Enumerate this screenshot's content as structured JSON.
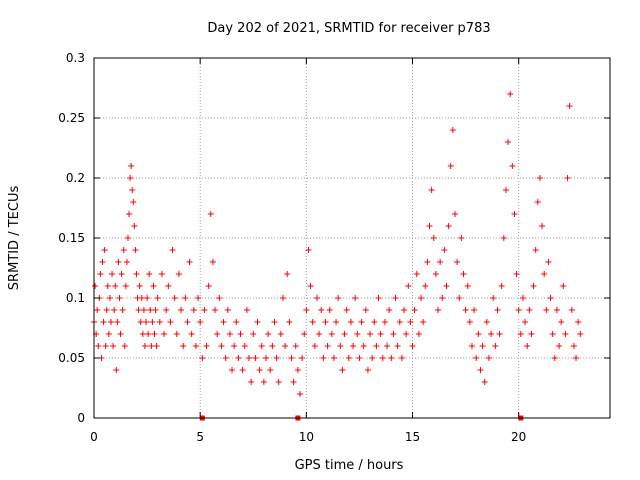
{
  "chart_data": {
    "type": "scatter",
    "title": "Day 202 of 2021, SRMTID for receiver p783",
    "xlabel": "GPS time / hours",
    "ylabel": "SRMTID / TECUs",
    "xlim": [
      0,
      24.3
    ],
    "ylim": [
      0,
      0.3
    ],
    "xticks": [
      0,
      5,
      10,
      15,
      20
    ],
    "xtick_labels": [
      "0",
      "5",
      "10",
      "15",
      "20"
    ],
    "yticks": [
      0,
      0.05,
      0.1,
      0.15,
      0.2,
      0.25,
      0.3
    ],
    "ytick_labels": [
      "0",
      "0.05",
      "0.1",
      "0.15",
      "0.2",
      "0.25",
      "0.3"
    ],
    "grid": true,
    "marker": "plus",
    "series_color": "#ff0000",
    "series": [
      {
        "name": "SRMTID",
        "points": [
          [
            0.0,
            0.08
          ],
          [
            0.05,
            0.11
          ],
          [
            0.1,
            0.07
          ],
          [
            0.15,
            0.09
          ],
          [
            0.2,
            0.06
          ],
          [
            0.25,
            0.1
          ],
          [
            0.3,
            0.12
          ],
          [
            0.35,
            0.05
          ],
          [
            0.4,
            0.13
          ],
          [
            0.45,
            0.08
          ],
          [
            0.5,
            0.14
          ],
          [
            0.55,
            0.06
          ],
          [
            0.6,
            0.09
          ],
          [
            0.65,
            0.11
          ],
          [
            0.7,
            0.07
          ],
          [
            0.75,
            0.1
          ],
          [
            0.8,
            0.08
          ],
          [
            0.85,
            0.12
          ],
          [
            0.9,
            0.06
          ],
          [
            0.95,
            0.09
          ],
          [
            1.0,
            0.11
          ],
          [
            1.05,
            0.04
          ],
          [
            1.1,
            0.08
          ],
          [
            1.15,
            0.13
          ],
          [
            1.2,
            0.1
          ],
          [
            1.25,
            0.07
          ],
          [
            1.3,
            0.12
          ],
          [
            1.35,
            0.09
          ],
          [
            1.4,
            0.14
          ],
          [
            1.45,
            0.06
          ],
          [
            1.5,
            0.11
          ],
          [
            1.55,
            0.13
          ],
          [
            1.6,
            0.15
          ],
          [
            1.65,
            0.17
          ],
          [
            1.7,
            0.2
          ],
          [
            1.75,
            0.21
          ],
          [
            1.8,
            0.19
          ],
          [
            1.85,
            0.18
          ],
          [
            1.9,
            0.16
          ],
          [
            1.95,
            0.14
          ],
          [
            2.0,
            0.12
          ],
          [
            2.05,
            0.1
          ],
          [
            2.1,
            0.09
          ],
          [
            2.15,
            0.11
          ],
          [
            2.2,
            0.08
          ],
          [
            2.25,
            0.1
          ],
          [
            2.3,
            0.07
          ],
          [
            2.35,
            0.09
          ],
          [
            2.4,
            0.06
          ],
          [
            2.45,
            0.08
          ],
          [
            2.5,
            0.1
          ],
          [
            2.55,
            0.07
          ],
          [
            2.6,
            0.12
          ],
          [
            2.65,
            0.09
          ],
          [
            2.7,
            0.06
          ],
          [
            2.75,
            0.08
          ],
          [
            2.8,
            0.11
          ],
          [
            2.85,
            0.07
          ],
          [
            2.9,
            0.09
          ],
          [
            2.95,
            0.06
          ],
          [
            3.0,
            0.1
          ],
          [
            3.1,
            0.08
          ],
          [
            3.2,
            0.12
          ],
          [
            3.3,
            0.07
          ],
          [
            3.4,
            0.09
          ],
          [
            3.5,
            0.11
          ],
          [
            3.6,
            0.08
          ],
          [
            3.7,
            0.14
          ],
          [
            3.8,
            0.1
          ],
          [
            3.9,
            0.07
          ],
          [
            4.0,
            0.12
          ],
          [
            4.1,
            0.09
          ],
          [
            4.2,
            0.06
          ],
          [
            4.3,
            0.1
          ],
          [
            4.4,
            0.08
          ],
          [
            4.5,
            0.13
          ],
          [
            4.6,
            0.07
          ],
          [
            4.7,
            0.09
          ],
          [
            4.8,
            0.06
          ],
          [
            4.9,
            0.1
          ],
          [
            5.0,
            0.08
          ],
          [
            5.1,
            0.05
          ],
          [
            5.2,
            0.09
          ],
          [
            5.3,
            0.06
          ],
          [
            5.4,
            0.11
          ],
          [
            5.5,
            0.17
          ],
          [
            5.6,
            0.13
          ],
          [
            5.7,
            0.09
          ],
          [
            5.8,
            0.07
          ],
          [
            5.9,
            0.1
          ],
          [
            6.0,
            0.06
          ],
          [
            6.1,
            0.08
          ],
          [
            6.2,
            0.05
          ],
          [
            6.3,
            0.09
          ],
          [
            6.4,
            0.07
          ],
          [
            6.5,
            0.04
          ],
          [
            6.6,
            0.06
          ],
          [
            6.7,
            0.08
          ],
          [
            6.8,
            0.05
          ],
          [
            6.9,
            0.07
          ],
          [
            7.0,
            0.04
          ],
          [
            7.1,
            0.06
          ],
          [
            7.2,
            0.09
          ],
          [
            7.3,
            0.05
          ],
          [
            7.4,
            0.03
          ],
          [
            7.5,
            0.07
          ],
          [
            7.6,
            0.05
          ],
          [
            7.7,
            0.08
          ],
          [
            7.8,
            0.04
          ],
          [
            7.9,
            0.06
          ],
          [
            8.0,
            0.03
          ],
          [
            8.1,
            0.05
          ],
          [
            8.2,
            0.07
          ],
          [
            8.3,
            0.04
          ],
          [
            8.4,
            0.06
          ],
          [
            8.5,
            0.08
          ],
          [
            8.6,
            0.05
          ],
          [
            8.7,
            0.03
          ],
          [
            8.8,
            0.07
          ],
          [
            8.9,
            0.1
          ],
          [
            9.0,
            0.06
          ],
          [
            9.1,
            0.12
          ],
          [
            9.2,
            0.08
          ],
          [
            9.3,
            0.05
          ],
          [
            9.4,
            0.03
          ],
          [
            9.5,
            0.06
          ],
          [
            9.6,
            0.04
          ],
          [
            9.7,
            0.02
          ],
          [
            9.8,
            0.05
          ],
          [
            9.9,
            0.07
          ],
          [
            10.0,
            0.09
          ],
          [
            10.1,
            0.14
          ],
          [
            10.2,
            0.11
          ],
          [
            10.3,
            0.08
          ],
          [
            10.4,
            0.06
          ],
          [
            10.5,
            0.1
          ],
          [
            10.6,
            0.07
          ],
          [
            10.7,
            0.09
          ],
          [
            10.8,
            0.05
          ],
          [
            10.9,
            0.08
          ],
          [
            11.0,
            0.06
          ],
          [
            11.1,
            0.09
          ],
          [
            11.2,
            0.07
          ],
          [
            11.3,
            0.05
          ],
          [
            11.4,
            0.08
          ],
          [
            11.5,
            0.1
          ],
          [
            11.6,
            0.06
          ],
          [
            11.7,
            0.04
          ],
          [
            11.8,
            0.07
          ],
          [
            11.9,
            0.09
          ],
          [
            12.0,
            0.05
          ],
          [
            12.1,
            0.08
          ],
          [
            12.2,
            0.06
          ],
          [
            12.3,
            0.1
          ],
          [
            12.4,
            0.07
          ],
          [
            12.5,
            0.05
          ],
          [
            12.6,
            0.08
          ],
          [
            12.7,
            0.06
          ],
          [
            12.8,
            0.09
          ],
          [
            12.9,
            0.04
          ],
          [
            13.0,
            0.07
          ],
          [
            13.1,
            0.05
          ],
          [
            13.2,
            0.08
          ],
          [
            13.3,
            0.06
          ],
          [
            13.4,
            0.1
          ],
          [
            13.5,
            0.07
          ],
          [
            13.6,
            0.05
          ],
          [
            13.7,
            0.08
          ],
          [
            13.8,
            0.06
          ],
          [
            13.9,
            0.09
          ],
          [
            14.0,
            0.05
          ],
          [
            14.1,
            0.07
          ],
          [
            14.2,
            0.1
          ],
          [
            14.3,
            0.06
          ],
          [
            14.4,
            0.08
          ],
          [
            14.5,
            0.05
          ],
          [
            14.6,
            0.09
          ],
          [
            14.7,
            0.07
          ],
          [
            14.8,
            0.11
          ],
          [
            14.9,
            0.08
          ],
          [
            15.0,
            0.06
          ],
          [
            15.1,
            0.09
          ],
          [
            15.2,
            0.12
          ],
          [
            15.3,
            0.07
          ],
          [
            15.4,
            0.1
          ],
          [
            15.5,
            0.08
          ],
          [
            15.6,
            0.11
          ],
          [
            15.7,
            0.13
          ],
          [
            15.8,
            0.16
          ],
          [
            15.9,
            0.19
          ],
          [
            16.0,
            0.15
          ],
          [
            16.1,
            0.12
          ],
          [
            16.2,
            0.09
          ],
          [
            16.3,
            0.13
          ],
          [
            16.4,
            0.1
          ],
          [
            16.5,
            0.14
          ],
          [
            16.6,
            0.11
          ],
          [
            16.7,
            0.16
          ],
          [
            16.8,
            0.21
          ],
          [
            16.9,
            0.24
          ],
          [
            17.0,
            0.17
          ],
          [
            17.1,
            0.13
          ],
          [
            17.2,
            0.1
          ],
          [
            17.3,
            0.15
          ],
          [
            17.4,
            0.12
          ],
          [
            17.5,
            0.09
          ],
          [
            17.6,
            0.11
          ],
          [
            17.7,
            0.08
          ],
          [
            17.8,
            0.06
          ],
          [
            17.9,
            0.09
          ],
          [
            18.0,
            0.05
          ],
          [
            18.1,
            0.07
          ],
          [
            18.2,
            0.04
          ],
          [
            18.3,
            0.06
          ],
          [
            18.4,
            0.03
          ],
          [
            18.5,
            0.08
          ],
          [
            18.6,
            0.05
          ],
          [
            18.7,
            0.07
          ],
          [
            18.8,
            0.1
          ],
          [
            18.9,
            0.06
          ],
          [
            19.0,
            0.09
          ],
          [
            19.1,
            0.07
          ],
          [
            19.2,
            0.11
          ],
          [
            19.3,
            0.15
          ],
          [
            19.4,
            0.19
          ],
          [
            19.5,
            0.23
          ],
          [
            19.6,
            0.27
          ],
          [
            19.7,
            0.21
          ],
          [
            19.8,
            0.17
          ],
          [
            19.9,
            0.12
          ],
          [
            20.0,
            0.09
          ],
          [
            20.1,
            0.07
          ],
          [
            20.2,
            0.1
          ],
          [
            20.3,
            0.08
          ],
          [
            20.4,
            0.06
          ],
          [
            20.5,
            0.09
          ],
          [
            20.6,
            0.07
          ],
          [
            20.7,
            0.11
          ],
          [
            20.8,
            0.14
          ],
          [
            20.9,
            0.18
          ],
          [
            21.0,
            0.2
          ],
          [
            21.1,
            0.16
          ],
          [
            21.2,
            0.12
          ],
          [
            21.3,
            0.09
          ],
          [
            21.4,
            0.13
          ],
          [
            21.5,
            0.1
          ],
          [
            21.6,
            0.07
          ],
          [
            21.7,
            0.05
          ],
          [
            21.8,
            0.09
          ],
          [
            21.9,
            0.06
          ],
          [
            22.0,
            0.08
          ],
          [
            22.1,
            0.11
          ],
          [
            22.2,
            0.07
          ],
          [
            22.3,
            0.2
          ],
          [
            22.4,
            0.26
          ],
          [
            22.5,
            0.09
          ],
          [
            22.6,
            0.06
          ],
          [
            22.7,
            0.05
          ],
          [
            22.8,
            0.08
          ],
          [
            22.9,
            0.07
          ]
        ]
      }
    ],
    "gap_markers_x": [
      5.1,
      9.6,
      20.1
    ]
  }
}
